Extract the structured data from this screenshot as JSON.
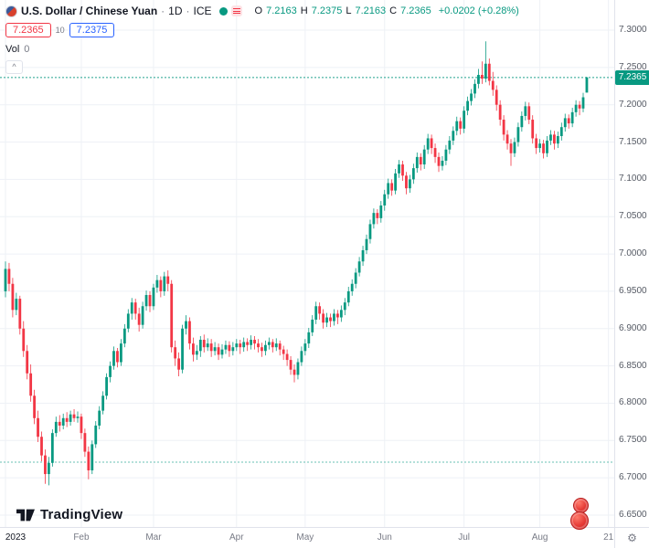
{
  "header": {
    "symbol_title": "U.S. Dollar / Chinese Yuan",
    "separator": "·",
    "interval": "1D",
    "exchange": "ICE",
    "ohlc": {
      "o_label": "O",
      "o": "7.2163",
      "h_label": "H",
      "h": "7.2375",
      "l_label": "L",
      "l": "7.2163",
      "c_label": "C",
      "c": "7.2365",
      "change": "+0.0202 (+0.28%)"
    },
    "bid": "7.2365",
    "spread": "10",
    "ask": "7.2375",
    "vol_label": "Vol",
    "vol_value": "0"
  },
  "icons": {
    "collapse": "^",
    "gear": "⚙"
  },
  "footer": {
    "logo_text": "TradingView"
  },
  "colors": {
    "up": "#089981",
    "down": "#f23645",
    "blue": "#2962ff",
    "grid": "#eef1f6",
    "axis_text": "#555a64",
    "text": "#131722",
    "muted": "#787b86"
  },
  "chart_data": {
    "type": "candlestick",
    "title": "U.S. Dollar / Chinese Yuan · 1D · ICE",
    "legend_position": "top-left",
    "grid": true,
    "y_axis": {
      "min": 6.65,
      "max": 7.3,
      "step": 0.05,
      "format": "4dp"
    },
    "price_line": 7.2365,
    "level_line": 6.721,
    "x_labels": [
      {
        "label": "2023",
        "index": 0,
        "major": true
      },
      {
        "label": "Feb",
        "index": 21,
        "major": false
      },
      {
        "label": "Mar",
        "index": 41,
        "major": false
      },
      {
        "label": "Apr",
        "index": 64,
        "major": false
      },
      {
        "label": "May",
        "index": 83,
        "major": false
      },
      {
        "label": "Jun",
        "index": 105,
        "major": false
      },
      {
        "label": "Jul",
        "index": 127,
        "major": false
      },
      {
        "label": "Aug",
        "index": 148,
        "major": false
      },
      {
        "label": "21",
        "index": 167,
        "major": false
      }
    ],
    "candles": [
      [
        6.95,
        6.99,
        6.942,
        6.98
      ],
      [
        6.98,
        6.988,
        6.95,
        6.96
      ],
      [
        6.96,
        6.968,
        6.915,
        6.925
      ],
      [
        6.925,
        6.948,
        6.918,
        6.94
      ],
      [
        6.94,
        6.944,
        6.892,
        6.9
      ],
      [
        6.9,
        6.91,
        6.862,
        6.87
      ],
      [
        6.87,
        6.878,
        6.832,
        6.84
      ],
      [
        6.84,
        6.852,
        6.802,
        6.81
      ],
      [
        6.81,
        6.818,
        6.772,
        6.78
      ],
      [
        6.78,
        6.79,
        6.748,
        6.755
      ],
      [
        6.755,
        6.762,
        6.722,
        6.73
      ],
      [
        6.73,
        6.738,
        6.692,
        6.705
      ],
      [
        6.705,
        6.728,
        6.69,
        6.72
      ],
      [
        6.72,
        6.765,
        6.715,
        6.76
      ],
      [
        6.76,
        6.782,
        6.755,
        6.775
      ],
      [
        6.775,
        6.784,
        6.762,
        6.77
      ],
      [
        6.77,
        6.786,
        6.765,
        6.78
      ],
      [
        6.78,
        6.788,
        6.768,
        6.775
      ],
      [
        6.775,
        6.79,
        6.77,
        6.785
      ],
      [
        6.785,
        6.792,
        6.775,
        6.78
      ],
      [
        6.78,
        6.789,
        6.774,
        6.782
      ],
      [
        6.782,
        6.786,
        6.752,
        6.76
      ],
      [
        6.76,
        6.766,
        6.728,
        6.735
      ],
      [
        6.735,
        6.742,
        6.698,
        6.71
      ],
      [
        6.71,
        6.75,
        6.705,
        6.745
      ],
      [
        6.745,
        6.776,
        6.74,
        6.77
      ],
      [
        6.77,
        6.796,
        6.765,
        6.79
      ],
      [
        6.79,
        6.816,
        6.785,
        6.81
      ],
      [
        6.81,
        6.84,
        6.805,
        6.835
      ],
      [
        6.835,
        6.856,
        6.828,
        6.85
      ],
      [
        6.85,
        6.876,
        6.845,
        6.87
      ],
      [
        6.87,
        6.874,
        6.848,
        6.855
      ],
      [
        6.855,
        6.886,
        6.85,
        6.88
      ],
      [
        6.88,
        6.906,
        6.875,
        6.9
      ],
      [
        6.9,
        6.926,
        6.895,
        6.92
      ],
      [
        6.92,
        6.941,
        6.912,
        6.935
      ],
      [
        6.935,
        6.94,
        6.912,
        6.92
      ],
      [
        6.92,
        6.928,
        6.896,
        6.905
      ],
      [
        6.905,
        6.936,
        6.9,
        6.93
      ],
      [
        6.93,
        6.951,
        6.924,
        6.945
      ],
      [
        6.945,
        6.95,
        6.922,
        6.93
      ],
      [
        6.93,
        6.96,
        6.925,
        6.955
      ],
      [
        6.955,
        6.972,
        6.948,
        6.965
      ],
      [
        6.965,
        6.97,
        6.942,
        6.95
      ],
      [
        6.95,
        6.976,
        6.944,
        6.97
      ],
      [
        6.97,
        6.978,
        6.95,
        6.96
      ],
      [
        6.96,
        6.965,
        6.868,
        6.875
      ],
      [
        6.875,
        6.884,
        6.85,
        6.86
      ],
      [
        6.86,
        6.868,
        6.836,
        6.845
      ],
      [
        6.845,
        6.905,
        6.84,
        6.9
      ],
      [
        6.9,
        6.918,
        6.892,
        6.91
      ],
      [
        6.91,
        6.915,
        6.872,
        6.88
      ],
      [
        6.88,
        6.888,
        6.856,
        6.865
      ],
      [
        6.865,
        6.878,
        6.858,
        6.87
      ],
      [
        6.87,
        6.89,
        6.862,
        6.885
      ],
      [
        6.885,
        6.892,
        6.868,
        6.875
      ],
      [
        6.875,
        6.887,
        6.87,
        6.88
      ],
      [
        6.88,
        6.886,
        6.862,
        6.87
      ],
      [
        6.87,
        6.882,
        6.864,
        6.875
      ],
      [
        6.875,
        6.88,
        6.858,
        6.865
      ],
      [
        6.865,
        6.879,
        6.86,
        6.872
      ],
      [
        6.872,
        6.884,
        6.866,
        6.878
      ],
      [
        6.878,
        6.883,
        6.862,
        6.87
      ],
      [
        6.87,
        6.882,
        6.864,
        6.875
      ],
      [
        6.875,
        6.886,
        6.87,
        6.88
      ],
      [
        6.88,
        6.885,
        6.866,
        6.875
      ],
      [
        6.875,
        6.888,
        6.869,
        6.882
      ],
      [
        6.882,
        6.887,
        6.87,
        6.878
      ],
      [
        6.878,
        6.891,
        6.872,
        6.885
      ],
      [
        6.885,
        6.89,
        6.872,
        6.88
      ],
      [
        6.88,
        6.886,
        6.868,
        6.875
      ],
      [
        6.875,
        6.881,
        6.862,
        6.87
      ],
      [
        6.87,
        6.884,
        6.864,
        6.878
      ],
      [
        6.878,
        6.888,
        6.872,
        6.882
      ],
      [
        6.882,
        6.886,
        6.868,
        6.875
      ],
      [
        6.875,
        6.887,
        6.87,
        6.88
      ],
      [
        6.88,
        6.884,
        6.864,
        6.872
      ],
      [
        6.872,
        6.877,
        6.858,
        6.866
      ],
      [
        6.866,
        6.872,
        6.85,
        6.858
      ],
      [
        6.858,
        6.863,
        6.838,
        6.845
      ],
      [
        6.845,
        6.852,
        6.828,
        6.838
      ],
      [
        6.838,
        6.86,
        6.832,
        6.855
      ],
      [
        6.855,
        6.876,
        6.85,
        6.87
      ],
      [
        6.87,
        6.886,
        6.864,
        6.88
      ],
      [
        6.88,
        6.901,
        6.874,
        6.895
      ],
      [
        6.895,
        6.918,
        6.89,
        6.912
      ],
      [
        6.912,
        6.936,
        6.906,
        6.93
      ],
      [
        6.93,
        6.935,
        6.912,
        6.92
      ],
      [
        6.92,
        6.926,
        6.9,
        6.908
      ],
      [
        6.908,
        6.921,
        6.902,
        6.915
      ],
      [
        6.915,
        6.92,
        6.902,
        6.91
      ],
      [
        6.91,
        6.926,
        6.904,
        6.92
      ],
      [
        6.92,
        6.925,
        6.906,
        6.915
      ],
      [
        6.915,
        6.931,
        6.909,
        6.925
      ],
      [
        6.925,
        6.941,
        6.918,
        6.935
      ],
      [
        6.935,
        6.956,
        6.93,
        6.95
      ],
      [
        6.95,
        6.966,
        6.944,
        6.96
      ],
      [
        6.96,
        6.981,
        6.954,
        6.975
      ],
      [
        6.975,
        6.996,
        6.97,
        6.99
      ],
      [
        6.99,
        7.011,
        6.984,
        7.005
      ],
      [
        7.005,
        7.026,
        7.0,
        7.02
      ],
      [
        7.02,
        7.046,
        7.014,
        7.04
      ],
      [
        7.04,
        7.061,
        7.034,
        7.055
      ],
      [
        7.055,
        7.06,
        7.04,
        7.048
      ],
      [
        7.048,
        7.071,
        7.042,
        7.065
      ],
      [
        7.065,
        7.086,
        7.058,
        7.08
      ],
      [
        7.08,
        7.101,
        7.074,
        7.095
      ],
      [
        7.095,
        7.1,
        7.078,
        7.085
      ],
      [
        7.085,
        7.114,
        7.08,
        7.108
      ],
      [
        7.108,
        7.126,
        7.102,
        7.12
      ],
      [
        7.12,
        7.125,
        7.098,
        7.105
      ],
      [
        7.105,
        7.11,
        7.08,
        7.088
      ],
      [
        7.088,
        7.106,
        7.082,
        7.1
      ],
      [
        7.1,
        7.121,
        7.094,
        7.115
      ],
      [
        7.115,
        7.136,
        7.109,
        7.13
      ],
      [
        7.13,
        7.135,
        7.112,
        7.12
      ],
      [
        7.12,
        7.146,
        7.114,
        7.14
      ],
      [
        7.14,
        7.161,
        7.134,
        7.155
      ],
      [
        7.155,
        7.16,
        7.134,
        7.142
      ],
      [
        7.142,
        7.148,
        7.122,
        7.13
      ],
      [
        7.13,
        7.136,
        7.11,
        7.118
      ],
      [
        7.118,
        7.131,
        7.112,
        7.125
      ],
      [
        7.125,
        7.146,
        7.119,
        7.14
      ],
      [
        7.14,
        7.158,
        7.134,
        7.152
      ],
      [
        7.152,
        7.171,
        7.146,
        7.165
      ],
      [
        7.165,
        7.184,
        7.159,
        7.178
      ],
      [
        7.178,
        7.183,
        7.16,
        7.168
      ],
      [
        7.168,
        7.198,
        7.162,
        7.192
      ],
      [
        7.192,
        7.211,
        7.186,
        7.205
      ],
      [
        7.205,
        7.221,
        7.199,
        7.215
      ],
      [
        7.215,
        7.234,
        7.209,
        7.228
      ],
      [
        7.228,
        7.248,
        7.222,
        7.24
      ],
      [
        7.24,
        7.258,
        7.228,
        7.235
      ],
      [
        7.235,
        7.285,
        7.23,
        7.255
      ],
      [
        7.255,
        7.262,
        7.226,
        7.232
      ],
      [
        7.232,
        7.244,
        7.212,
        7.22
      ],
      [
        7.22,
        7.226,
        7.192,
        7.2
      ],
      [
        7.2,
        7.206,
        7.172,
        7.18
      ],
      [
        7.18,
        7.186,
        7.152,
        7.16
      ],
      [
        7.16,
        7.166,
        7.14,
        7.148
      ],
      [
        7.148,
        7.154,
        7.118,
        7.135
      ],
      [
        7.135,
        7.156,
        7.13,
        7.15
      ],
      [
        7.15,
        7.176,
        7.144,
        7.17
      ],
      [
        7.17,
        7.191,
        7.164,
        7.185
      ],
      [
        7.185,
        7.204,
        7.179,
        7.198
      ],
      [
        7.198,
        7.203,
        7.174,
        7.18
      ],
      [
        7.18,
        7.186,
        7.148,
        7.155
      ],
      [
        7.155,
        7.161,
        7.134,
        7.142
      ],
      [
        7.142,
        7.154,
        7.136,
        7.148
      ],
      [
        7.148,
        7.153,
        7.128,
        7.135
      ],
      [
        7.135,
        7.158,
        7.13,
        7.152
      ],
      [
        7.152,
        7.166,
        7.146,
        7.16
      ],
      [
        7.16,
        7.165,
        7.14,
        7.148
      ],
      [
        7.148,
        7.164,
        7.142,
        7.158
      ],
      [
        7.158,
        7.176,
        7.152,
        7.17
      ],
      [
        7.17,
        7.188,
        7.164,
        7.182
      ],
      [
        7.182,
        7.187,
        7.168,
        7.175
      ],
      [
        7.175,
        7.196,
        7.17,
        7.19
      ],
      [
        7.19,
        7.206,
        7.184,
        7.2
      ],
      [
        7.2,
        7.205,
        7.186,
        7.195
      ],
      [
        7.195,
        7.216,
        7.19,
        7.21
      ],
      [
        7.2163,
        7.2375,
        7.2163,
        7.2365
      ]
    ]
  }
}
